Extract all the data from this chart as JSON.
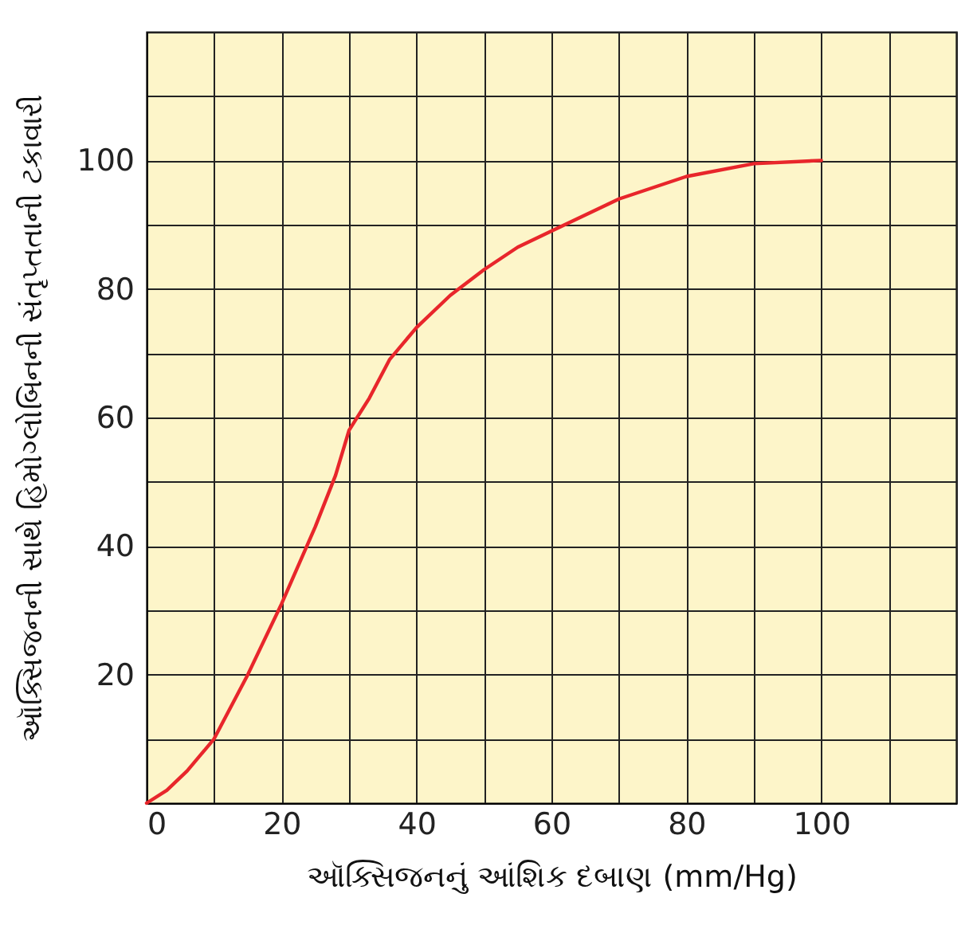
{
  "chart_data": {
    "type": "line",
    "xlabel": "ઑક્સિજનનું આંશિક દબાણ (mm/Hg)",
    "ylabel": "ઑક્સિજનની સાથે હિમોગ્લોબિનની સંતૃપ્તતાની ટકાવારી",
    "x": [
      0,
      3,
      6,
      10,
      15,
      20,
      25,
      28,
      30,
      33,
      36,
      40,
      45,
      50,
      55,
      60,
      70,
      80,
      90,
      100
    ],
    "series": [
      {
        "color": "#e8262b",
        "values": [
          0,
          2,
          5,
          10,
          20,
          31,
          43,
          51,
          58,
          63,
          69,
          74,
          79,
          83,
          86.5,
          89,
          94,
          97.5,
          99.5,
          100
        ]
      }
    ],
    "xlim": [
      0,
      120
    ],
    "ylim": [
      0,
      120
    ],
    "xticks": [
      0,
      {
        "value": 10,
        "label": null
      },
      20,
      {
        "value": 30,
        "label": null
      },
      40,
      {
        "value": 50,
        "label": null
      },
      60,
      {
        "value": 70,
        "label": null
      },
      80,
      {
        "value": 90,
        "label": null
      },
      100,
      {
        "value": 110,
        "label": null
      },
      {
        "value": 120,
        "label": null
      }
    ],
    "yticks": [
      {
        "value": 0,
        "label": null
      },
      {
        "value": 10,
        "label": null
      },
      20,
      {
        "value": 30,
        "label": null
      },
      40,
      {
        "value": 50,
        "label": null
      },
      60,
      {
        "value": 70,
        "label": null
      },
      80,
      {
        "value": 90,
        "label": null
      },
      100,
      {
        "value": 110,
        "label": null
      },
      {
        "value": 120,
        "label": null
      }
    ],
    "grid": true,
    "line_style": "solid",
    "marker": "none"
  }
}
